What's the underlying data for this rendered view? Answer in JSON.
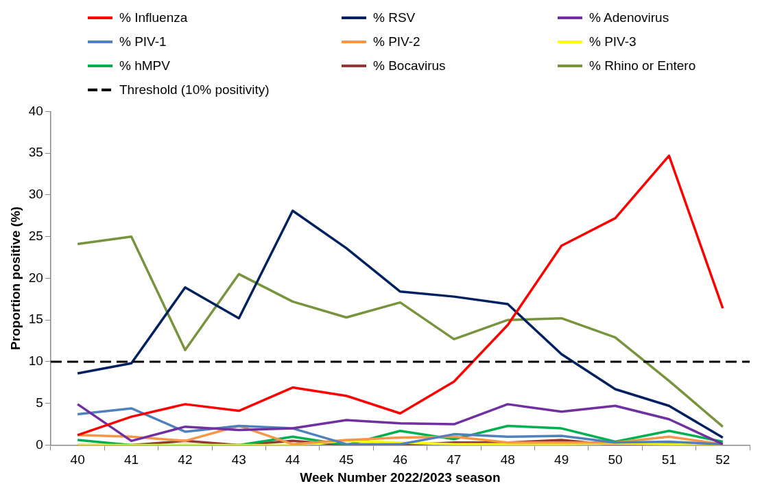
{
  "chart_data": {
    "type": "line",
    "xlabel": "Week Number 2022/2023 season",
    "ylabel": "Proportion positive (%)",
    "categories": [
      "40",
      "41",
      "42",
      "43",
      "44",
      "45",
      "46",
      "47",
      "48",
      "49",
      "50",
      "51",
      "52"
    ],
    "series": [
      {
        "name": "% Influenza",
        "color": "#ff0000",
        "values": [
          1.2,
          3.4,
          4.9,
          4.1,
          6.9,
          5.9,
          3.8,
          7.6,
          14.4,
          23.9,
          27.2,
          34.7,
          16.4
        ]
      },
      {
        "name": "% RSV",
        "color": "#002060",
        "values": [
          8.6,
          9.8,
          18.9,
          15.2,
          28.1,
          23.6,
          18.4,
          17.8,
          16.9,
          10.9,
          6.7,
          4.7,
          0.9
        ]
      },
      {
        "name": "% Adenovirus",
        "color": "#7030a0",
        "values": [
          4.9,
          0.5,
          2.2,
          1.8,
          2.0,
          3.0,
          2.6,
          2.5,
          4.9,
          4.0,
          4.7,
          3.1,
          0.1
        ]
      },
      {
        "name": "% PIV-1",
        "color": "#4f81bd",
        "values": [
          3.7,
          4.4,
          1.6,
          2.3,
          2.0,
          0.1,
          0.1,
          1.3,
          1.0,
          1.1,
          0.3,
          0.4,
          0.1
        ]
      },
      {
        "name": "% PIV-2",
        "color": "#f79646",
        "values": [
          1.2,
          1.0,
          0.5,
          2.3,
          0.1,
          0.6,
          0.9,
          1.0,
          0.3,
          0.3,
          0.3,
          1.0,
          0.1
        ]
      },
      {
        "name": "% PIV-3",
        "color": "#ffff00",
        "values": [
          0,
          0,
          0,
          0,
          0,
          0.5,
          0.3,
          0.1,
          0.1,
          0.1,
          0.2,
          0.1,
          0
        ]
      },
      {
        "name": "% hMPV",
        "color": "#00b050",
        "values": [
          0.6,
          0,
          0,
          0,
          1.0,
          0,
          1.7,
          0.7,
          2.3,
          2.0,
          0.4,
          1.7,
          0.4
        ]
      },
      {
        "name": "% Bocavirus",
        "color": "#953735",
        "values": [
          0,
          0,
          0.5,
          0,
          0.5,
          0,
          0,
          0.3,
          0.3,
          0.6,
          0,
          0.2,
          0
        ]
      },
      {
        "name": "% Rhino or Entero",
        "color": "#77933c",
        "values": [
          24.1,
          25.0,
          11.4,
          20.5,
          17.2,
          15.3,
          17.1,
          12.7,
          15.0,
          15.2,
          12.9,
          7.7,
          2.2
        ]
      }
    ],
    "ref_lines": [
      {
        "axis": "y",
        "value": 10,
        "label": "Threshold (10% positivity)",
        "color": "#000000",
        "line_style": "dashed"
      }
    ],
    "ylim": [
      0,
      40
    ],
    "yticks": [
      0,
      5,
      10,
      15,
      20,
      25,
      30,
      35,
      40
    ],
    "grid": false,
    "legend": "top",
    "marker": "none",
    "line_style": "solid"
  }
}
